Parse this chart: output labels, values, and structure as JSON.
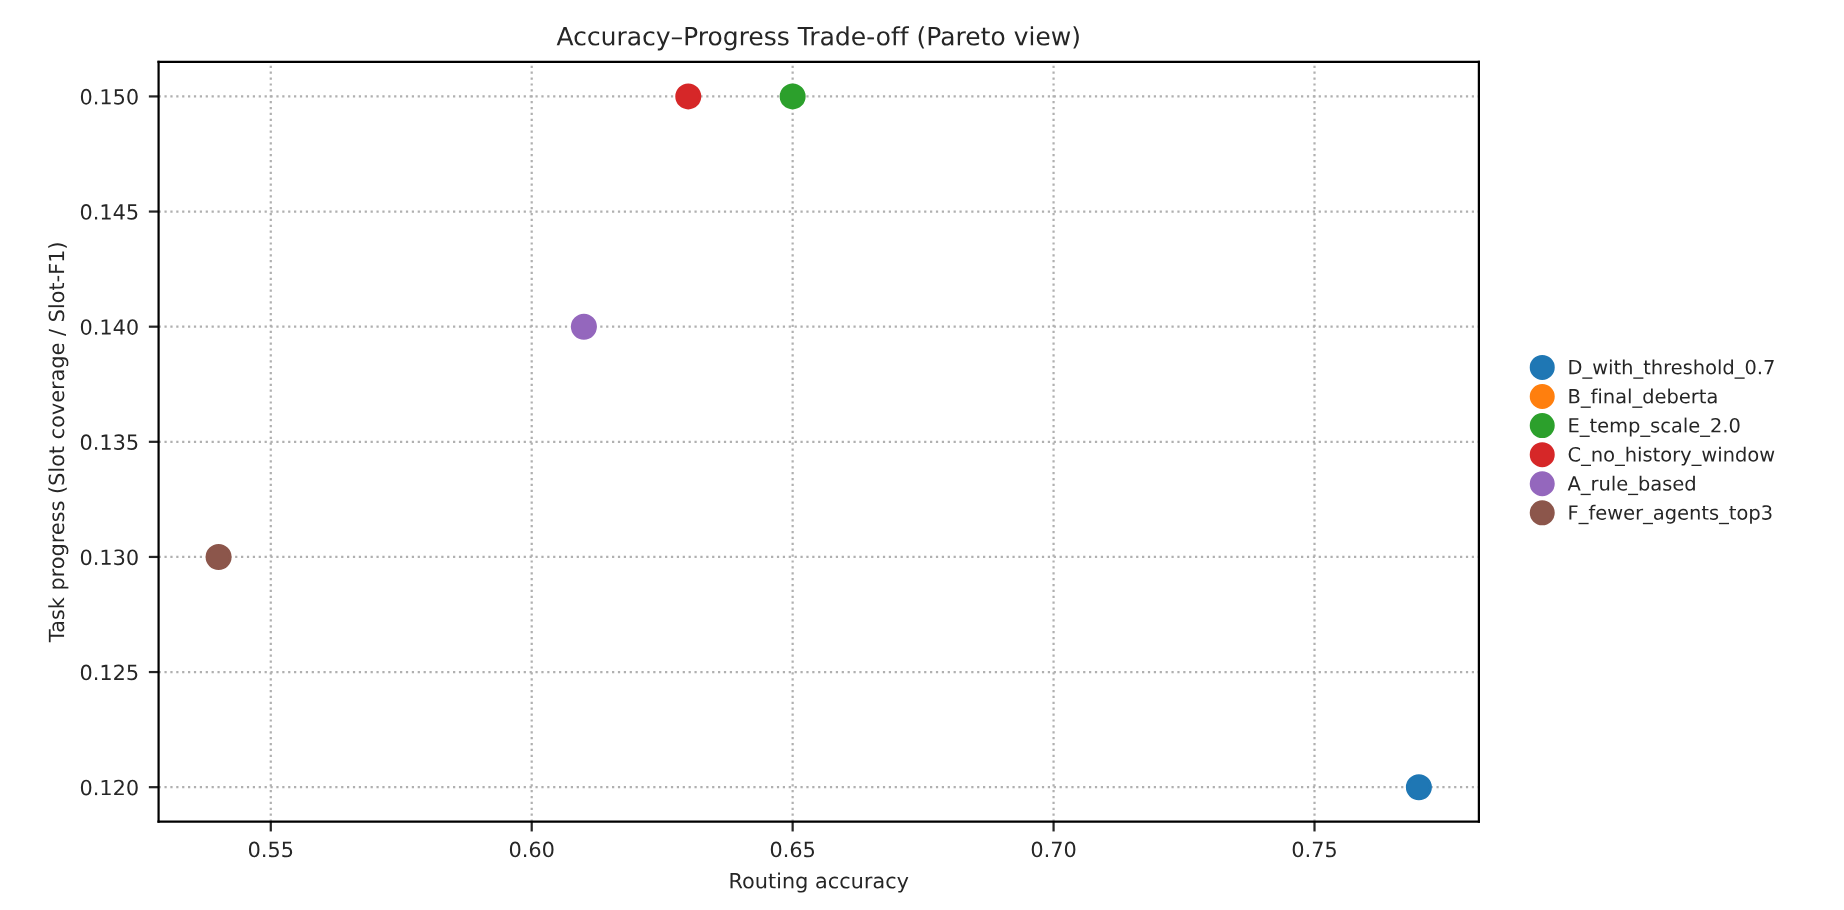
{
  "chart_data": {
    "type": "scatter",
    "title": "Accuracy–Progress Trade-off (Pareto view)",
    "xlabel": "Routing accuracy",
    "ylabel": "Task progress (Slot coverage / Slot-F1)",
    "series": [
      {
        "name": "D_with_threshold_0.7",
        "color": "#1f77b4",
        "x": [
          0.77
        ],
        "values": [
          0.12
        ]
      },
      {
        "name": "B_final_deberta",
        "color": "#ff7f0e",
        "x": [
          null
        ],
        "values": [
          null
        ]
      },
      {
        "name": "E_temp_scale_2.0",
        "color": "#2ca02c",
        "x": [
          0.65
        ],
        "values": [
          0.15
        ]
      },
      {
        "name": "C_no_history_window",
        "color": "#d62728",
        "x": [
          0.63
        ],
        "values": [
          0.15
        ]
      },
      {
        "name": "A_rule_based",
        "color": "#9467bd",
        "x": [
          0.61
        ],
        "values": [
          0.14
        ]
      },
      {
        "name": "F_fewer_agents_top3",
        "color": "#8c564b",
        "x": [
          0.54
        ],
        "values": [
          0.13
        ]
      }
    ],
    "xlim": [
      0.5285,
      0.7815
    ],
    "xticks": [
      0.55,
      {
        "value": 0.6,
        "label": "0.60"
      },
      0.65,
      {
        "value": 0.7,
        "label": "0.70"
      },
      0.75
    ],
    "ylim": [
      0.1185,
      0.1515
    ],
    "yticks": [
      {
        "value": 0.12,
        "label": "0.120"
      },
      0.125,
      {
        "value": 0.13,
        "label": "0.130"
      },
      0.135,
      {
        "value": 0.14,
        "label": "0.140"
      },
      0.145,
      {
        "value": 0.15,
        "label": "0.150"
      }
    ],
    "grid": true,
    "legend": "right",
    "marker": "circle",
    "line_style": "dotted"
  }
}
